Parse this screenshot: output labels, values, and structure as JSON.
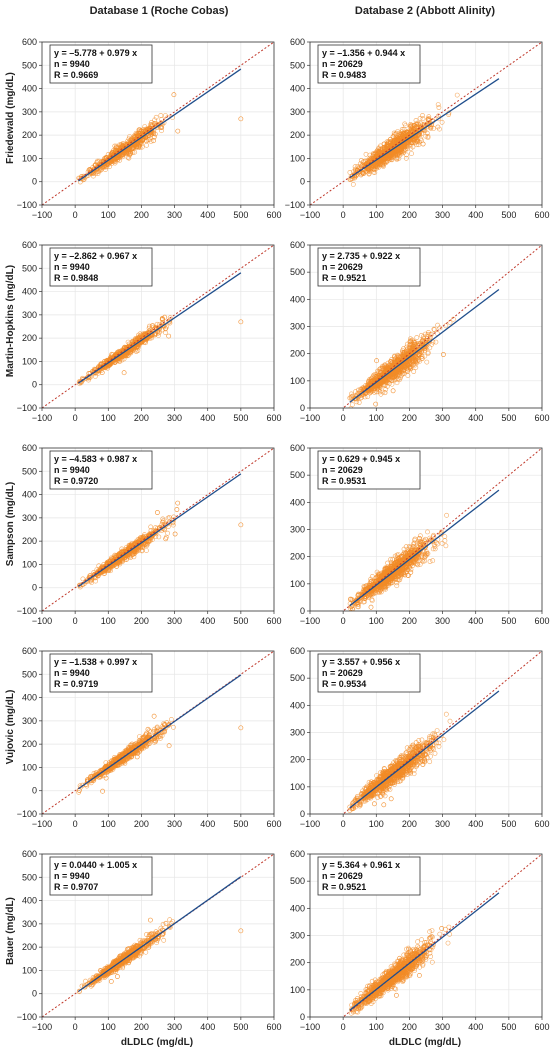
{
  "columns": [
    "Database 1 (Roche Cobas)",
    "Database 2 (Abbott Alinity)"
  ],
  "row_labels": [
    "Friedewald (mg/dL)",
    "Martin-Hopkins (mg/dL)",
    "Sampson (mg/dL)",
    "Vujovic (mg/dL)",
    "Bauer (mg/dL)"
  ],
  "x_label": "dLDLC (mg/dL)",
  "colors": {
    "points": "#f28c28",
    "fit_line": "#1f4e8c",
    "identity_line": "#c0392b",
    "grid": "#e6e6e6"
  },
  "chart_data": [
    {
      "type": "scatter",
      "row": 0,
      "col": 0,
      "xlim": [
        -100,
        600
      ],
      "ylim": [
        -100,
        600
      ],
      "xticks": [
        -100,
        0,
        100,
        200,
        300,
        400,
        500,
        600
      ],
      "yticks": [
        -100,
        0,
        100,
        200,
        300,
        400,
        500,
        600
      ],
      "grid": true,
      "fit": {
        "intercept": -5.778,
        "slope": 0.979,
        "x_range": [
          10,
          500
        ]
      },
      "identity_line": true,
      "n_points": 9940,
      "stats": {
        "equation": "y = –5.778 +  0.979  x",
        "n": "n  = 9940",
        "R": "R  = 0.9669"
      },
      "point_spread": {
        "x_range": [
          10,
          300
        ],
        "noise_sd": 14
      }
    },
    {
      "type": "scatter",
      "row": 0,
      "col": 1,
      "xlim": [
        -100,
        600
      ],
      "ylim": [
        -100,
        600
      ],
      "xticks": [
        -100,
        0,
        100,
        200,
        300,
        400,
        500,
        600
      ],
      "yticks": [
        -100,
        0,
        100,
        200,
        300,
        400,
        500,
        600
      ],
      "grid": true,
      "fit": {
        "intercept": -1.356,
        "slope": 0.944,
        "x_range": [
          20,
          470
        ]
      },
      "identity_line": true,
      "n_points": 20629,
      "stats": {
        "equation": "y = –1.356 +  0.944  x",
        "n": "n  = 20629",
        "R": "R  = 0.9483"
      },
      "point_spread": {
        "x_range": [
          20,
          420
        ],
        "noise_sd": 20
      }
    },
    {
      "type": "scatter",
      "row": 1,
      "col": 0,
      "xlim": [
        -100,
        600
      ],
      "ylim": [
        -100,
        600
      ],
      "xticks": [
        -100,
        0,
        100,
        200,
        300,
        400,
        500,
        600
      ],
      "yticks": [
        -100,
        0,
        100,
        200,
        300,
        400,
        500,
        600
      ],
      "grid": true,
      "fit": {
        "intercept": -2.862,
        "slope": 0.967,
        "x_range": [
          10,
          500
        ]
      },
      "identity_line": true,
      "n_points": 9940,
      "stats": {
        "equation": "y = –2.862 +  0.967  x",
        "n": "n  = 9940",
        "R": "R  = 0.9848"
      },
      "point_spread": {
        "x_range": [
          10,
          300
        ],
        "noise_sd": 10
      }
    },
    {
      "type": "scatter",
      "row": 1,
      "col": 1,
      "xlim": [
        -100,
        600
      ],
      "ylim": [
        0,
        600
      ],
      "xticks": [
        -100,
        0,
        100,
        200,
        300,
        400,
        500,
        600
      ],
      "yticks": [
        0,
        100,
        200,
        300,
        400,
        500,
        600
      ],
      "grid": true,
      "fit": {
        "intercept": 2.735,
        "slope": 0.922,
        "x_range": [
          20,
          470
        ]
      },
      "identity_line": true,
      "n_points": 20629,
      "stats": {
        "equation": "y = 2.735 +  0.922  x",
        "n": "n  = 20629",
        "R": "R  = 0.9521"
      },
      "point_spread": {
        "x_range": [
          20,
          420
        ],
        "noise_sd": 18
      }
    },
    {
      "type": "scatter",
      "row": 2,
      "col": 0,
      "xlim": [
        -100,
        600
      ],
      "ylim": [
        -100,
        600
      ],
      "xticks": [
        -100,
        0,
        100,
        200,
        300,
        400,
        500,
        600
      ],
      "yticks": [
        -100,
        0,
        100,
        200,
        300,
        400,
        500,
        600
      ],
      "grid": true,
      "fit": {
        "intercept": -4.583,
        "slope": 0.987,
        "x_range": [
          10,
          500
        ]
      },
      "identity_line": true,
      "n_points": 9940,
      "stats": {
        "equation": "y = –4.583 +  0.987  x",
        "n": "n  = 9940",
        "R": "R  = 0.9720"
      },
      "point_spread": {
        "x_range": [
          10,
          300
        ],
        "noise_sd": 11
      }
    },
    {
      "type": "scatter",
      "row": 2,
      "col": 1,
      "xlim": [
        -100,
        600
      ],
      "ylim": [
        0,
        600
      ],
      "xticks": [
        -100,
        0,
        100,
        200,
        300,
        400,
        500,
        600
      ],
      "yticks": [
        0,
        100,
        200,
        300,
        400,
        500,
        600
      ],
      "grid": true,
      "fit": {
        "intercept": 0.629,
        "slope": 0.945,
        "x_range": [
          20,
          470
        ]
      },
      "identity_line": true,
      "n_points": 20629,
      "stats": {
        "equation": "y = 0.629 +  0.945  x",
        "n": "n  = 20629",
        "R": "R  = 0.9531"
      },
      "point_spread": {
        "x_range": [
          20,
          420
        ],
        "noise_sd": 17
      }
    },
    {
      "type": "scatter",
      "row": 3,
      "col": 0,
      "xlim": [
        -100,
        600
      ],
      "ylim": [
        -100,
        600
      ],
      "xticks": [
        -100,
        0,
        100,
        200,
        300,
        400,
        500,
        600
      ],
      "yticks": [
        -100,
        0,
        100,
        200,
        300,
        400,
        500,
        600
      ],
      "grid": true,
      "fit": {
        "intercept": -1.538,
        "slope": 0.997,
        "x_range": [
          10,
          500
        ]
      },
      "identity_line": true,
      "n_points": 9940,
      "stats": {
        "equation": "y = –1.538 +  0.997  x",
        "n": "n  = 9940",
        "R": "R  = 0.9719"
      },
      "point_spread": {
        "x_range": [
          10,
          300
        ],
        "noise_sd": 11
      }
    },
    {
      "type": "scatter",
      "row": 3,
      "col": 1,
      "xlim": [
        -100,
        600
      ],
      "ylim": [
        0,
        600
      ],
      "xticks": [
        -100,
        0,
        100,
        200,
        300,
        400,
        500,
        600
      ],
      "yticks": [
        0,
        100,
        200,
        300,
        400,
        500,
        600
      ],
      "grid": true,
      "fit": {
        "intercept": 3.557,
        "slope": 0.956,
        "x_range": [
          20,
          470
        ]
      },
      "identity_line": true,
      "n_points": 20629,
      "stats": {
        "equation": "y = 3.557 +  0.956  x",
        "n": "n  = 20629",
        "R": "R  = 0.9534"
      },
      "point_spread": {
        "x_range": [
          20,
          420
        ],
        "noise_sd": 17
      }
    },
    {
      "type": "scatter",
      "row": 4,
      "col": 0,
      "xlim": [
        -100,
        600
      ],
      "ylim": [
        -100,
        600
      ],
      "xticks": [
        -100,
        0,
        100,
        200,
        300,
        400,
        500,
        600
      ],
      "yticks": [
        -100,
        0,
        100,
        200,
        300,
        400,
        500,
        600
      ],
      "grid": true,
      "fit": {
        "intercept": 0.044,
        "slope": 1.005,
        "x_range": [
          10,
          500
        ]
      },
      "identity_line": true,
      "n_points": 9940,
      "stats": {
        "equation": "y = 0.0440 +  1.005  x",
        "n": "n  = 9940",
        "R": "R  = 0.9707"
      },
      "point_spread": {
        "x_range": [
          10,
          300
        ],
        "noise_sd": 11
      }
    },
    {
      "type": "scatter",
      "row": 4,
      "col": 1,
      "xlim": [
        -100,
        600
      ],
      "ylim": [
        0,
        600
      ],
      "xticks": [
        -100,
        0,
        100,
        200,
        300,
        400,
        500,
        600
      ],
      "yticks": [
        0,
        100,
        200,
        300,
        400,
        500,
        600
      ],
      "grid": true,
      "fit": {
        "intercept": 5.364,
        "slope": 0.961,
        "x_range": [
          20,
          470
        ]
      },
      "identity_line": true,
      "n_points": 20629,
      "stats": {
        "equation": "y = 5.364 +  0.961  x",
        "n": "n  = 20629",
        "R": "R  = 0.9521"
      },
      "point_spread": {
        "x_range": [
          20,
          420
        ],
        "noise_sd": 17
      }
    }
  ]
}
